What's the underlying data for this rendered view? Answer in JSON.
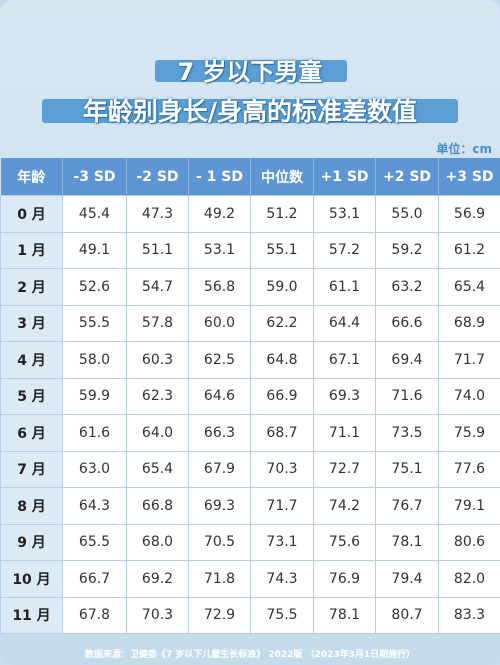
{
  "header": {
    "title_line1": "7 岁以下男童",
    "title_line2": "年龄别身长/身高的标准差数值",
    "unit": "单位：cm"
  },
  "table": {
    "columns": [
      "年龄",
      "-3 SD",
      "-2 SD",
      "- 1 SD",
      "中位数",
      "+1 SD",
      "+2 SD",
      "+3 SD"
    ],
    "rows": [
      [
        "0 月",
        "45.4",
        "47.3",
        "49.2",
        "51.2",
        "53.1",
        "55.0",
        "56.9"
      ],
      [
        "1 月",
        "49.1",
        "51.1",
        "53.1",
        "55.1",
        "57.2",
        "59.2",
        "61.2"
      ],
      [
        "2 月",
        "52.6",
        "54.7",
        "56.8",
        "59.0",
        "61.1",
        "63.2",
        "65.4"
      ],
      [
        "3 月",
        "55.5",
        "57.8",
        "60.0",
        "62.2",
        "64.4",
        "66.6",
        "68.9"
      ],
      [
        "4 月",
        "58.0",
        "60.3",
        "62.5",
        "64.8",
        "67.1",
        "69.4",
        "71.7"
      ],
      [
        "5 月",
        "59.9",
        "62.3",
        "64.6",
        "66.9",
        "69.3",
        "71.6",
        "74.0"
      ],
      [
        "6 月",
        "61.6",
        "64.0",
        "66.3",
        "68.7",
        "71.1",
        "73.5",
        "75.9"
      ],
      [
        "7 月",
        "63.0",
        "65.4",
        "67.9",
        "70.3",
        "72.7",
        "75.1",
        "77.6"
      ],
      [
        "8 月",
        "64.3",
        "66.8",
        "69.3",
        "71.7",
        "74.2",
        "76.7",
        "79.1"
      ],
      [
        "9 月",
        "65.5",
        "68.0",
        "70.5",
        "73.1",
        "75.6",
        "78.1",
        "80.6"
      ],
      [
        "10 月",
        "66.7",
        "69.2",
        "71.8",
        "74.3",
        "76.9",
        "79.4",
        "82.0"
      ],
      [
        "11 月",
        "67.8",
        "70.3",
        "72.9",
        "75.5",
        "78.1",
        "80.7",
        "83.3"
      ]
    ]
  },
  "footer": {
    "source": "数据来源：卫健委《7 岁以下儿童生长标准》 2022版 （2023年3月1日期施行）"
  }
}
